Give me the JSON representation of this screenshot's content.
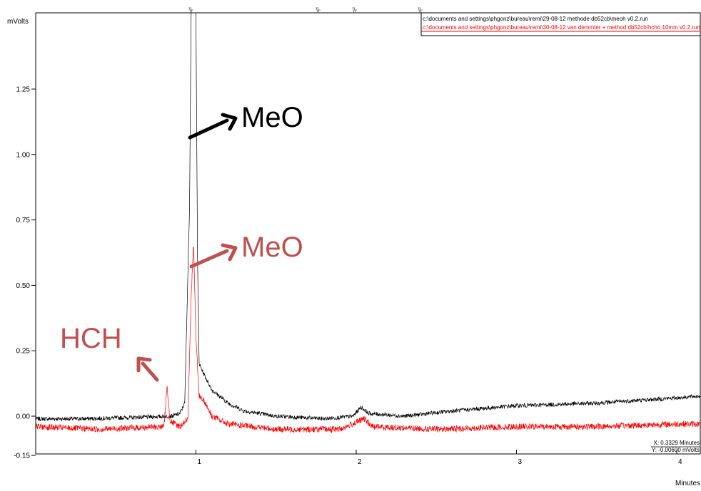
{
  "chart_data": {
    "type": "line",
    "ylabel": "mVolts",
    "xlabel": "Minutes",
    "xlim": [
      0,
      4.2
    ],
    "ylim": [
      -0.15,
      1.5
    ],
    "x_ticks": [
      {
        "value": 1,
        "label": "1"
      },
      {
        "value": 2,
        "label": "2"
      },
      {
        "value": 3,
        "label": "3"
      },
      {
        "value": 4,
        "label": "4"
      }
    ],
    "y_ticks": [
      {
        "value": 1.25,
        "label": "1.25"
      },
      {
        "value": 1.0,
        "label": "1.00"
      },
      {
        "value": 0.75,
        "label": "0.75"
      },
      {
        "value": 0.5,
        "label": "0.50"
      },
      {
        "value": 0.25,
        "label": "0.25"
      },
      {
        "value": 0.0,
        "label": "0.00"
      },
      {
        "value": -0.15,
        "label": "-0.15"
      }
    ],
    "grid": false,
    "legend_position": "top-right",
    "series": [
      {
        "name": "c:\\documents and settings\\phgonz\\bureau\\remi\\29-08-12 methode db52cb\\meoh v0.2.run",
        "color": "#000000",
        "points": [
          [
            0.0,
            -0.01
          ],
          [
            0.3,
            -0.01
          ],
          [
            0.6,
            -0.005
          ],
          [
            0.85,
            0.0
          ],
          [
            0.9,
            0.01
          ],
          [
            0.93,
            0.05
          ],
          [
            0.96,
            0.8
          ],
          [
            0.97,
            1.55
          ],
          [
            0.985,
            1.55
          ],
          [
            1.0,
            1.55
          ],
          [
            1.01,
            0.6
          ],
          [
            1.02,
            0.2
          ],
          [
            1.05,
            0.16
          ],
          [
            1.1,
            0.1
          ],
          [
            1.2,
            0.05
          ],
          [
            1.3,
            0.02
          ],
          [
            1.5,
            0.0
          ],
          [
            1.8,
            -0.01
          ],
          [
            1.98,
            0.0
          ],
          [
            2.03,
            0.035
          ],
          [
            2.08,
            0.01
          ],
          [
            2.3,
            0.0
          ],
          [
            2.6,
            0.02
          ],
          [
            3.0,
            0.04
          ],
          [
            3.5,
            0.05
          ],
          [
            4.0,
            0.07
          ],
          [
            4.2,
            0.08
          ]
        ]
      },
      {
        "name": "c:\\documents and settings\\phgonz\\bureau\\remi\\30-08-12 van demmter + method db52cb\\hcho 10mm v0.2.run",
        "color": "#ff0000",
        "points": [
          [
            0.0,
            -0.04
          ],
          [
            0.4,
            -0.05
          ],
          [
            0.8,
            -0.04
          ],
          [
            0.82,
            0.11
          ],
          [
            0.84,
            -0.02
          ],
          [
            0.9,
            -0.04
          ],
          [
            0.95,
            -0.01
          ],
          [
            0.97,
            0.45
          ],
          [
            0.985,
            0.67
          ],
          [
            1.0,
            0.3
          ],
          [
            1.02,
            0.08
          ],
          [
            1.05,
            0.06
          ],
          [
            1.1,
            0.0
          ],
          [
            1.2,
            -0.03
          ],
          [
            1.5,
            -0.05
          ],
          [
            1.9,
            -0.05
          ],
          [
            2.05,
            -0.01
          ],
          [
            2.1,
            -0.04
          ],
          [
            2.5,
            -0.05
          ],
          [
            3.0,
            -0.04
          ],
          [
            3.5,
            -0.04
          ],
          [
            4.0,
            -0.03
          ],
          [
            4.2,
            -0.03
          ]
        ]
      }
    ],
    "annotations": [
      {
        "text": "MeO",
        "color": "#000000"
      },
      {
        "text": "MeO",
        "color": "#c0504d"
      },
      {
        "text": "HCH",
        "color": "#c0504d"
      }
    ],
    "cursor_readout": {
      "x_text": "X: 0.3329 Minutes",
      "y_text": "Y: -0.00600 mVolts"
    }
  }
}
